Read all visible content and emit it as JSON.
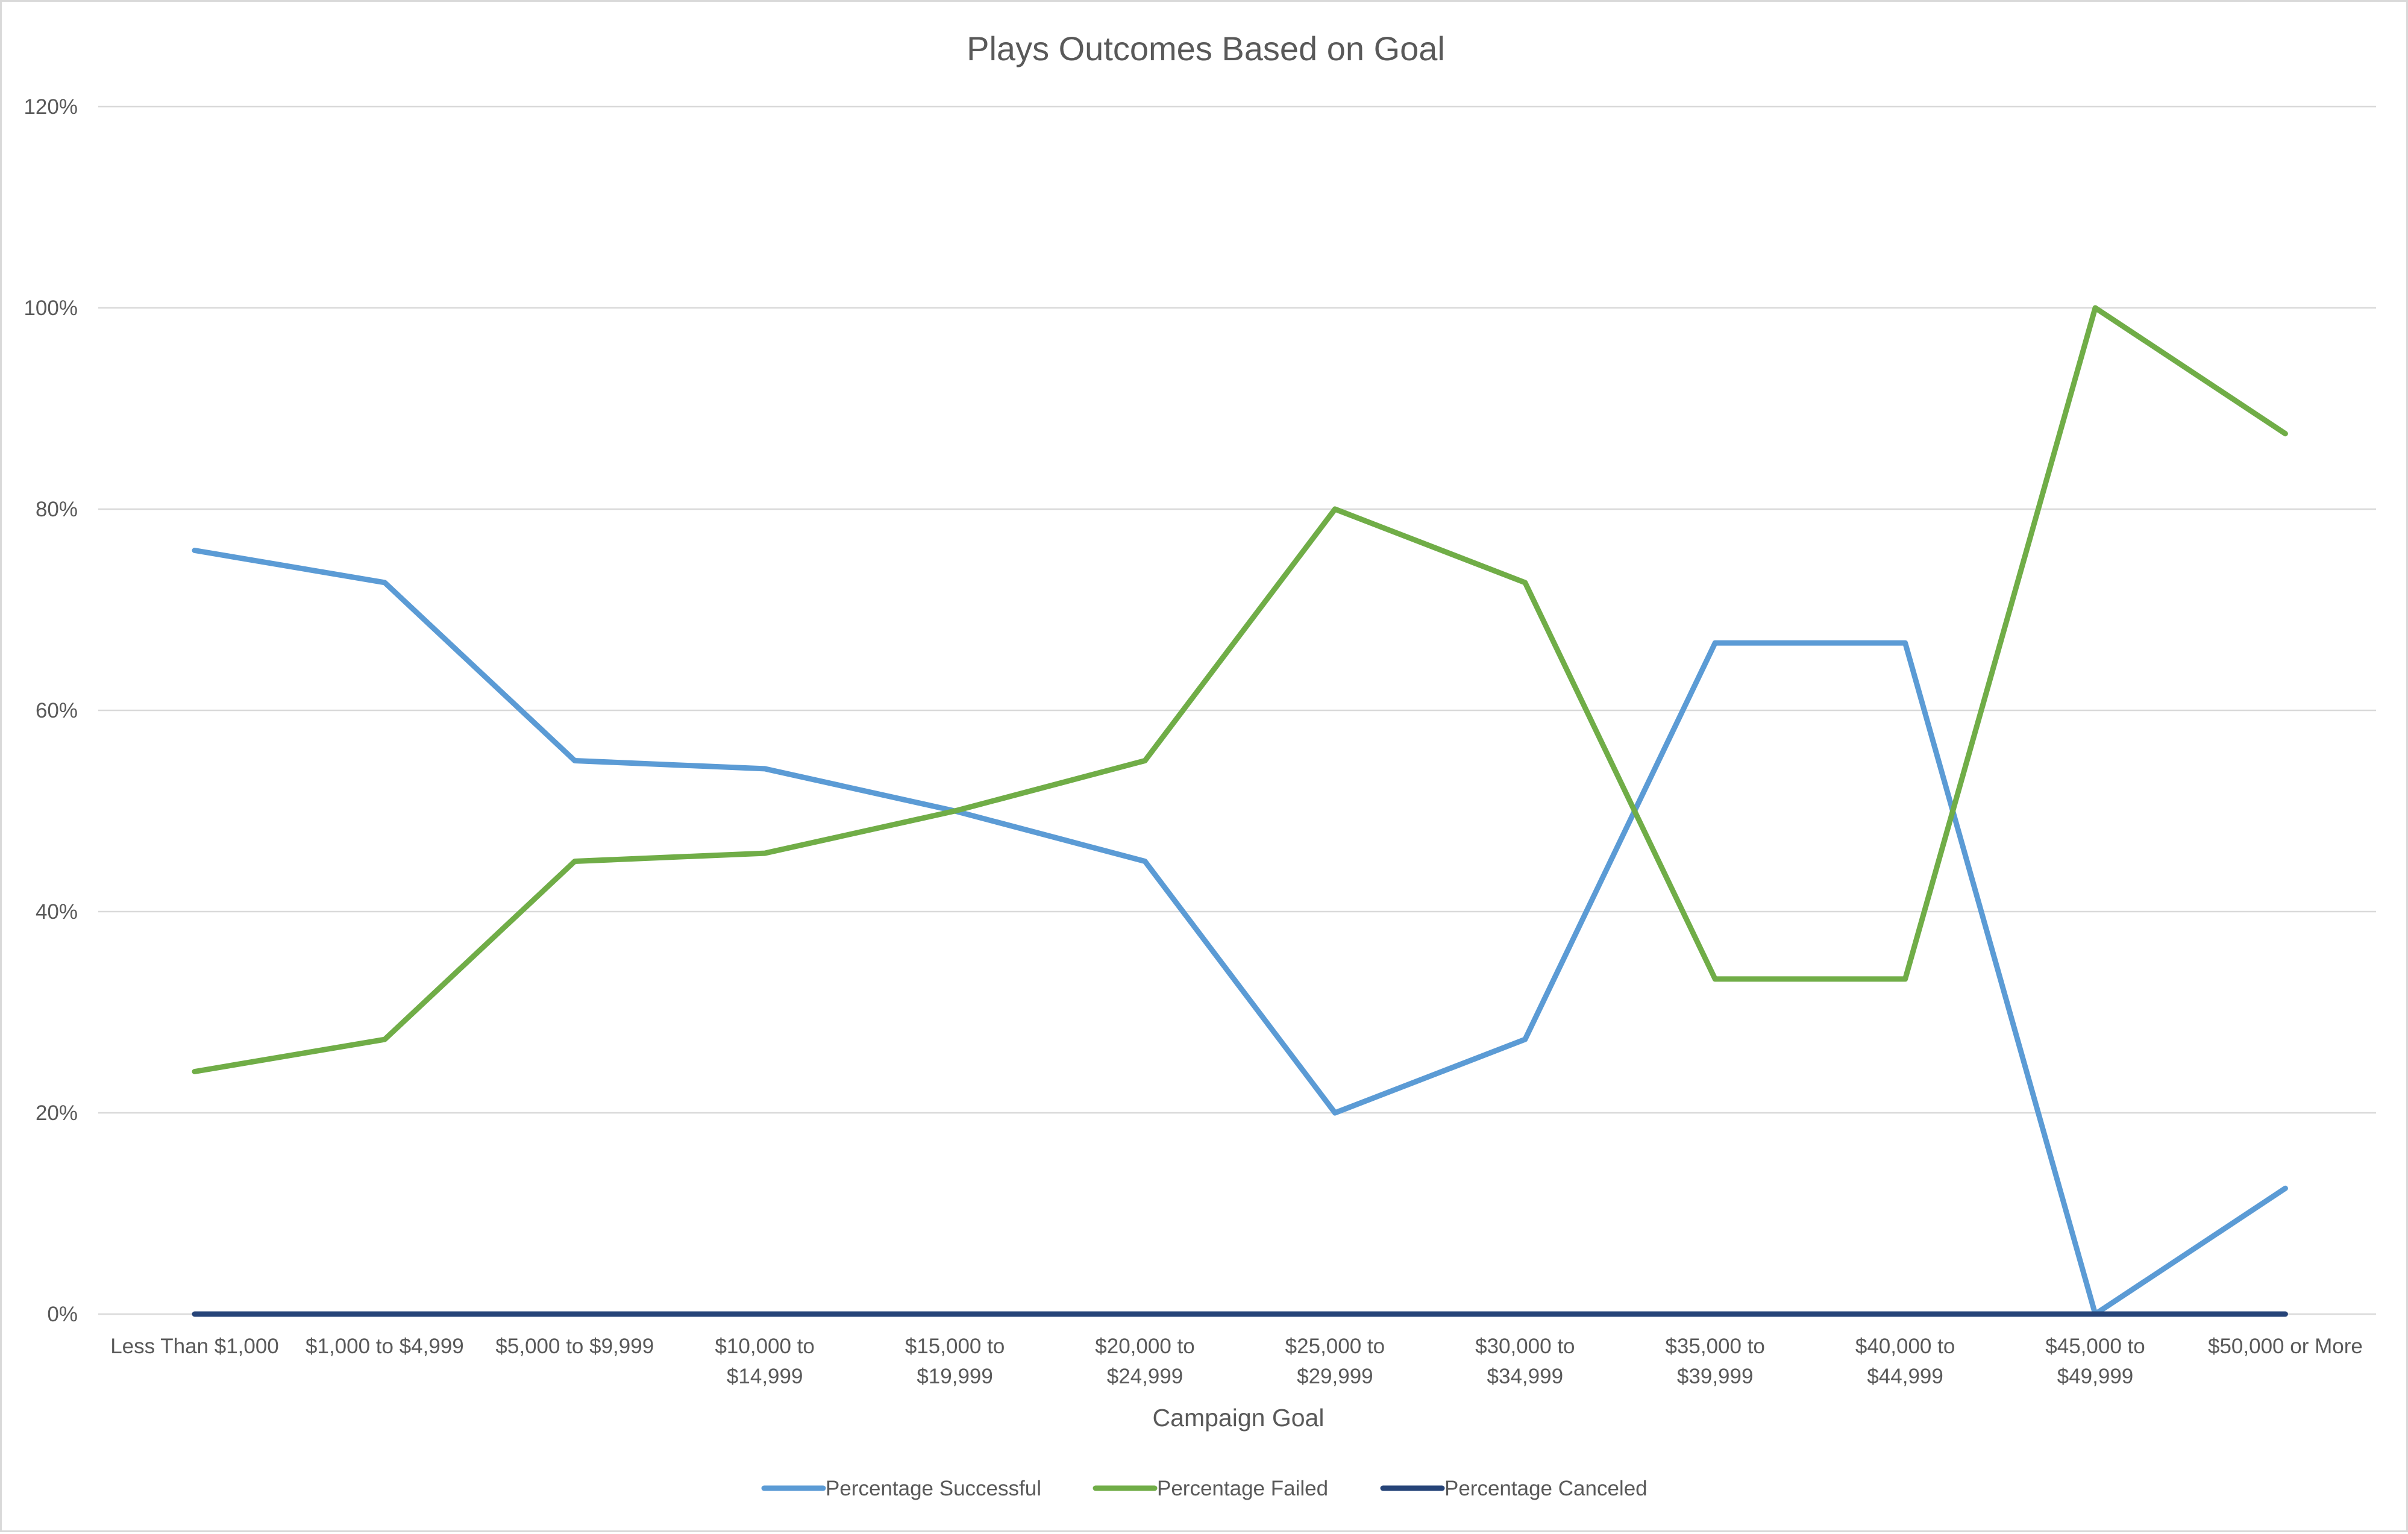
{
  "chart_data": {
    "type": "line",
    "title": "Plays Outcomes Based on Goal",
    "xlabel": "Campaign Goal",
    "ylabel": "",
    "ylim": [
      0,
      1.2
    ],
    "y_ticks": [
      "0%",
      "20%",
      "40%",
      "60%",
      "80%",
      "100%",
      "120%"
    ],
    "grid": true,
    "legend_position": "bottom",
    "categories": [
      [
        "Less Than $1,000"
      ],
      [
        "$1,000 to $4,999"
      ],
      [
        "$5,000 to $9,999"
      ],
      [
        "$10,000 to",
        "$14,999"
      ],
      [
        "$15,000 to",
        "$19,999"
      ],
      [
        "$20,000 to",
        "$24,999"
      ],
      [
        "$25,000 to",
        "$29,999"
      ],
      [
        "$30,000 to",
        "$34,999"
      ],
      [
        "$35,000 to",
        "$39,999"
      ],
      [
        "$40,000 to",
        "$44,999"
      ],
      [
        "$45,000 to",
        "$49,999"
      ],
      [
        "$50,000 or More"
      ]
    ],
    "series": [
      {
        "name": "Percentage Successful",
        "color": "#5B9BD5",
        "values": [
          0.759,
          0.727,
          0.55,
          0.542,
          0.5,
          0.45,
          0.2,
          0.273,
          0.667,
          0.667,
          0.0,
          0.125
        ]
      },
      {
        "name": "Percentage Failed",
        "color": "#70AD47",
        "values": [
          0.241,
          0.273,
          0.45,
          0.458,
          0.5,
          0.55,
          0.8,
          0.727,
          0.333,
          0.333,
          1.0,
          0.875
        ]
      },
      {
        "name": "Percentage Canceled",
        "color": "#264478",
        "values": [
          0,
          0,
          0,
          0,
          0,
          0,
          0,
          0,
          0,
          0,
          0,
          0
        ]
      }
    ]
  }
}
